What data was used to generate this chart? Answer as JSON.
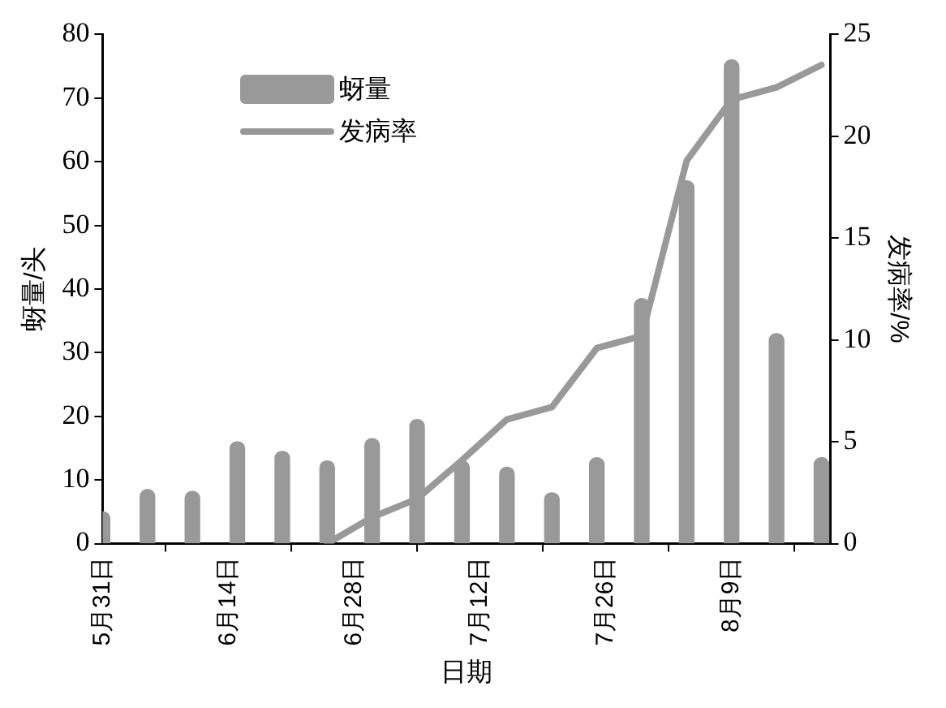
{
  "chart_data": {
    "type": "bar",
    "xlabel": "日期",
    "ylabel": "蚜量/头",
    "y2label": "发病率/%",
    "x": [
      "--05-31",
      "--06-05",
      "--06-10",
      "--06-15",
      "--06-20",
      "--06-25",
      "--06-30",
      "--07-05",
      "--07-10",
      "--07-15",
      "--07-20",
      "--07-25",
      "--07-30",
      "--08-04",
      "--08-09",
      "--08-14",
      "--08-19"
    ],
    "series": [
      {
        "name": "蚜量",
        "color": "#999999",
        "values": [
          5,
          8.5,
          8.2,
          16,
          14.5,
          13,
          16.5,
          19.5,
          13,
          12,
          8,
          13.5,
          38.5,
          57,
          76,
          33,
          13.5
        ]
      },
      {
        "name": "发病率",
        "type": "line",
        "axis": "y2",
        "color": "#999999",
        "values": [
          null,
          null,
          null,
          null,
          null,
          0,
          1.3,
          2.2,
          4.1,
          6.1,
          6.7,
          9.6,
          10.2,
          18.8,
          21.8,
          22.4,
          23.5
        ]
      }
    ],
    "xlim": [
      "--05-31",
      "--08-20"
    ],
    "xticks": [
      {
        "value": "--05-31",
        "label": "5月31日"
      },
      {
        "value": "--06-14",
        "label": "6月14日"
      },
      {
        "value": "--06-28",
        "label": "6月28日"
      },
      {
        "value": "--07-12",
        "label": "7月12日"
      },
      {
        "value": "--07-26",
        "label": "7月26日"
      },
      {
        "value": "--08-09",
        "label": "8月9日"
      }
    ],
    "ylim": [
      0,
      80
    ],
    "yticks": [
      0,
      10,
      20,
      30,
      40,
      50,
      60,
      70,
      80
    ],
    "y2lim": [
      0,
      25
    ],
    "y2ticks": [
      0,
      5,
      10,
      15,
      20,
      25
    ],
    "legend": "top left",
    "grid": false,
    "marker": "none",
    "line_style": "solid"
  }
}
